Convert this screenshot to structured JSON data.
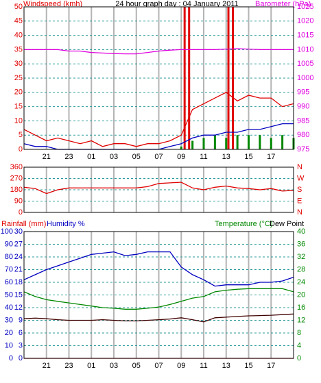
{
  "chart_data": [
    {
      "type": "line",
      "title": "24 hour graph day : 04 January 2011",
      "x": [
        0,
        1,
        2,
        3,
        4,
        5,
        6,
        7,
        8,
        9,
        10,
        11,
        12,
        13,
        14,
        15,
        16,
        17,
        18,
        19,
        20,
        21,
        22,
        23,
        24
      ],
      "xlim": [
        0,
        24
      ],
      "xticks": [
        {
          "value": 2,
          "label": "21"
        },
        {
          "value": 4,
          "label": "23"
        },
        {
          "value": 6,
          "label": "01"
        },
        {
          "value": 8,
          "label": "03"
        },
        {
          "value": 10,
          "label": "05"
        },
        {
          "value": 12,
          "label": "07"
        },
        {
          "value": 14,
          "label": "09"
        },
        {
          "value": 16,
          "label": "11"
        },
        {
          "value": 18,
          "label": "13"
        },
        {
          "value": 20,
          "label": "15"
        },
        {
          "value": 22,
          "label": "17"
        }
      ],
      "ylim": [
        0,
        50
      ],
      "yticks": [
        0,
        5,
        10,
        15,
        20,
        25,
        30,
        35,
        40,
        45,
        50
      ],
      "ytick_color": "#e00000",
      "y2lim": [
        975,
        1025
      ],
      "y2ticks": [
        975,
        980,
        985,
        990,
        995,
        1000,
        1005,
        1010,
        1015,
        1020,
        1025
      ],
      "y2tick_color": "#e000e0",
      "grid": true,
      "series": [
        {
          "style": "bar",
          "color": "#008800",
          "values": [
            0,
            0,
            0,
            0,
            0,
            0,
            0,
            0,
            0,
            0,
            0,
            0,
            0,
            0,
            1,
            3,
            4,
            5,
            4,
            5,
            5,
            5,
            4,
            5,
            4
          ]
        },
        {
          "style": "bar",
          "color": "#e00000",
          "x": [
            14.3,
            14.7,
            18.2,
            18.6
          ],
          "values": [
            50,
            50,
            50,
            50
          ]
        },
        {
          "name": "Windspeed (kmh)",
          "style": "line",
          "color": "#e00000",
          "values": [
            7,
            5,
            3,
            4,
            3,
            2,
            3,
            1,
            2,
            2,
            1,
            2,
            2,
            3,
            5,
            14,
            16,
            18,
            20,
            17,
            19,
            18,
            18,
            15,
            16
          ]
        },
        {
          "style": "line",
          "color": "#0000c0",
          "values": [
            2,
            1,
            1,
            0,
            0,
            0,
            0,
            0,
            0,
            0,
            0,
            0,
            0,
            1,
            2,
            4,
            5,
            5,
            6,
            6,
            7,
            7,
            8,
            9,
            9
          ]
        },
        {
          "name": "Barometer (hPa)",
          "style": "line",
          "color": "#e000e0",
          "axis": "y2",
          "values": [
            1010,
            1010,
            1010,
            1010,
            1009.5,
            1009.5,
            1009,
            1008.8,
            1008.6,
            1008.5,
            1008.5,
            1009,
            1009.5,
            1009.8,
            1010,
            1010,
            1010,
            1010,
            1010.2,
            1010.3,
            1010.2,
            1010,
            1010,
            1010,
            1010
          ]
        }
      ]
    },
    {
      "type": "line",
      "x": [
        0,
        1,
        2,
        3,
        4,
        5,
        6,
        7,
        8,
        9,
        10,
        11,
        12,
        13,
        14,
        15,
        16,
        17,
        18,
        19,
        20,
        21,
        22,
        23,
        24
      ],
      "xlim": [
        0,
        24
      ],
      "ylim": [
        0,
        360
      ],
      "yticks": [
        0,
        90,
        180,
        270,
        360
      ],
      "ytick_color": "#e00000",
      "y2lim": [
        0,
        360
      ],
      "y2ticks": [
        {
          "value": 360,
          "label": "N"
        },
        {
          "value": 270,
          "label": "W"
        },
        {
          "value": 180,
          "label": "S"
        },
        {
          "value": 90,
          "label": "E"
        },
        {
          "value": 0,
          "label": "N"
        }
      ],
      "y2tick_color": "#e00000",
      "grid": true,
      "series": [
        {
          "style": "line",
          "color": "#e00000",
          "values": [
            200,
            190,
            150,
            180,
            195,
            195,
            195,
            195,
            195,
            195,
            195,
            205,
            230,
            235,
            240,
            195,
            180,
            200,
            210,
            195,
            190,
            180,
            190,
            170,
            175
          ]
        }
      ]
    },
    {
      "type": "line",
      "x": [
        0,
        1,
        2,
        3,
        4,
        5,
        6,
        7,
        8,
        9,
        10,
        11,
        12,
        13,
        14,
        15,
        16,
        17,
        18,
        19,
        20,
        21,
        22,
        23,
        24
      ],
      "xlim": [
        0,
        24
      ],
      "xticks": [
        {
          "value": 2,
          "label": "21"
        },
        {
          "value": 4,
          "label": "23"
        },
        {
          "value": 6,
          "label": "01"
        },
        {
          "value": 8,
          "label": "03"
        },
        {
          "value": 10,
          "label": "05"
        },
        {
          "value": 12,
          "label": "07"
        },
        {
          "value": 14,
          "label": "09"
        },
        {
          "value": 16,
          "label": "11"
        },
        {
          "value": 18,
          "label": "13"
        },
        {
          "value": 20,
          "label": "15"
        },
        {
          "value": 22,
          "label": "17"
        }
      ],
      "ylim": [
        0,
        100
      ],
      "yticks": [
        0,
        10,
        20,
        30,
        40,
        50,
        60,
        70,
        80,
        90,
        100
      ],
      "ytick_color": "#0000c0",
      "y3lim": [
        0,
        30
      ],
      "y3ticks": [
        0,
        3,
        6,
        9,
        12,
        15,
        18,
        21,
        24,
        27,
        30
      ],
      "y3tick_color": "#0000c0",
      "y2lim": [
        0,
        40
      ],
      "y2ticks": [
        0,
        4,
        8,
        12,
        16,
        20,
        24,
        28,
        32,
        36,
        40
      ],
      "y2tick_color": "#008800",
      "grid": true,
      "series": [
        {
          "name": "Rainfall (mm)",
          "style": "line",
          "color": "#e00000",
          "axis": "y3",
          "values": [
            0,
            0,
            0,
            0,
            0,
            0,
            0,
            0,
            0,
            0,
            0,
            0,
            0,
            0,
            0,
            0,
            0,
            0,
            0,
            0,
            0,
            0,
            0,
            0,
            0
          ]
        },
        {
          "name": "Humidity %",
          "style": "line",
          "color": "#0000c0",
          "values": [
            62,
            66,
            70,
            73,
            76,
            79,
            82,
            83,
            84,
            81,
            82,
            84,
            84,
            84,
            72,
            66,
            62,
            57,
            58,
            58,
            58,
            60,
            60,
            61,
            64
          ]
        },
        {
          "name": "Temperature (°C)",
          "style": "line",
          "color": "#008800",
          "axis": "y2",
          "values": [
            21,
            19.5,
            18.5,
            18,
            17.5,
            17,
            16.5,
            16,
            15.8,
            15.5,
            15.5,
            15.8,
            16.2,
            17,
            18,
            19,
            19.5,
            21,
            21.5,
            21.8,
            22,
            22,
            22,
            22,
            21
          ]
        },
        {
          "name": "Dew Point",
          "style": "line",
          "color": "#400000",
          "axis": "y2",
          "values": [
            12.5,
            12.7,
            12.5,
            12.2,
            12,
            12,
            12,
            12.2,
            12,
            11.8,
            11.8,
            12,
            12.2,
            12.4,
            12.8,
            12.2,
            11.5,
            12.8,
            13,
            13.2,
            13.4,
            13.5,
            13.6,
            13.8,
            14
          ]
        }
      ]
    }
  ]
}
